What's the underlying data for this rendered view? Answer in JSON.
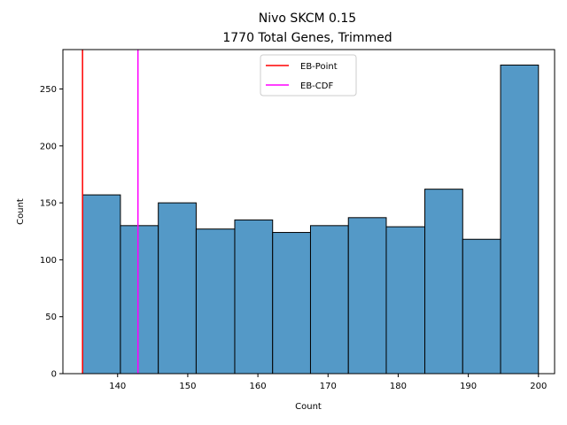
{
  "chart_data": {
    "type": "bar",
    "title": "Nivo SKCM 0.15",
    "subtitle": "1770 Total Genes, Trimmed",
    "xlabel": "Count",
    "ylabel": "Count",
    "xlim": [
      132.2,
      202.3
    ],
    "ylim": [
      0,
      284.6
    ],
    "x_ticks": [
      140,
      150,
      160,
      170,
      180,
      190,
      200
    ],
    "y_ticks": [
      0,
      50,
      100,
      150,
      200,
      250
    ],
    "bins": [
      {
        "start": 135.0,
        "end": 140.4,
        "count": 157
      },
      {
        "start": 140.4,
        "end": 145.8,
        "count": 130
      },
      {
        "start": 145.8,
        "end": 151.2,
        "count": 150
      },
      {
        "start": 151.2,
        "end": 156.7,
        "count": 127
      },
      {
        "start": 156.7,
        "end": 162.1,
        "count": 135
      },
      {
        "start": 162.1,
        "end": 167.5,
        "count": 124
      },
      {
        "start": 167.5,
        "end": 172.9,
        "count": 130
      },
      {
        "start": 172.9,
        "end": 178.3,
        "count": 137
      },
      {
        "start": 178.3,
        "end": 183.8,
        "count": 129
      },
      {
        "start": 183.8,
        "end": 189.2,
        "count": 162
      },
      {
        "start": 189.2,
        "end": 194.6,
        "count": 118
      },
      {
        "start": 194.6,
        "end": 200.0,
        "count": 271
      }
    ],
    "bar_color": "#5499c7",
    "vlines": [
      {
        "name": "EB-Point",
        "x": 135.0,
        "color": "#ff0000"
      },
      {
        "name": "EB-CDF",
        "x": 142.9,
        "color": "#ff00ff"
      }
    ],
    "legend_position": "top-center",
    "grid": false
  }
}
